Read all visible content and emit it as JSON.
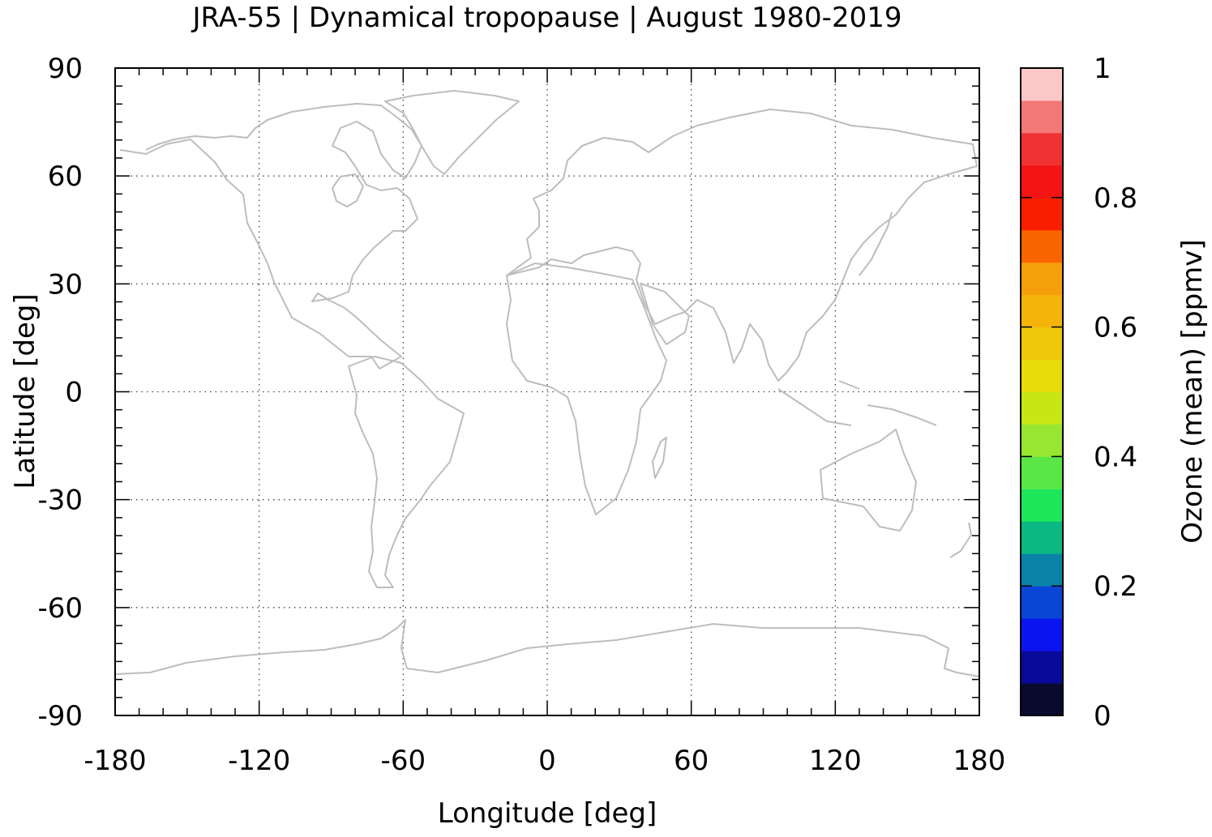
{
  "chart_data": {
    "type": "heatmap",
    "title": "JRA-55 | Dynamical tropopause | August 1980-2019",
    "xlabel": "Longitude [deg]",
    "ylabel": "Latitude [deg]",
    "xlim": [
      -180,
      180
    ],
    "ylim": [
      -90,
      90
    ],
    "xticks": [
      "-180",
      "-120",
      "-60",
      "0",
      "60",
      "120",
      "180"
    ],
    "yticks": [
      "90",
      "60",
      "30",
      "0",
      "-30",
      "-60",
      "-90"
    ],
    "grid": true,
    "colorbar": {
      "label": "Ozone (mean) [ppmv]",
      "range": [
        0,
        1
      ],
      "ticks": [
        "0",
        "0.2",
        "0.4",
        "0.6",
        "0.8",
        "1"
      ],
      "colors": [
        "#0a0a2e",
        "#0a0a9a",
        "#0a14f0",
        "#0a46d6",
        "#0a82a8",
        "#0ab882",
        "#1ee65a",
        "#5ae646",
        "#96e632",
        "#c8e614",
        "#e6dc0a",
        "#f0c80a",
        "#f5b40a",
        "#f5a00a",
        "#fa6400",
        "#fa1e00",
        "#f51414",
        "#f03232",
        "#f57878",
        "#fac8c8"
      ]
    },
    "coastline_color": "#bdbdbd"
  }
}
